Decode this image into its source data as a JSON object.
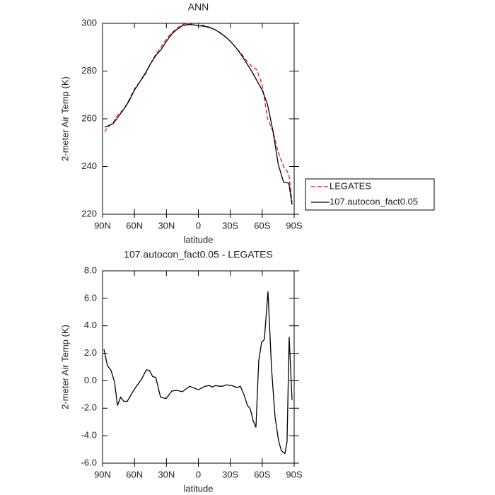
{
  "chart_data": [
    {
      "type": "line",
      "title": "ANN",
      "xlabel": "latitude",
      "ylabel": "2-meter Air Temp (K)",
      "x": [
        88,
        85,
        80,
        75,
        70,
        65,
        60,
        55,
        50,
        45,
        40,
        35,
        30,
        25,
        20,
        15,
        10,
        5,
        0,
        -5,
        -10,
        -15,
        -20,
        -25,
        -30,
        -35,
        -40,
        -45,
        -50,
        -55,
        -60,
        -65,
        -70,
        -75,
        -80,
        -85,
        -88
      ],
      "series": [
        {
          "name": "LEGATES",
          "color": "#e0191b",
          "linestyle": "dashed",
          "values": [
            254.5,
            256.5,
            258.5,
            262,
            264,
            268,
            272.5,
            275.5,
            278.5,
            283,
            287,
            290,
            293.5,
            296,
            298,
            299.5,
            300,
            299.5,
            299,
            299.2,
            298.5,
            297.5,
            296,
            294.5,
            292.5,
            290,
            287.5,
            284.5,
            282,
            280.5,
            274,
            260,
            255,
            246,
            240,
            237,
            225
          ]
        },
        {
          "name": "107.autocon_fact0.05",
          "color": "#000000",
          "linestyle": "solid",
          "values": [
            256.5,
            257,
            258,
            261,
            264,
            267.5,
            272,
            275.5,
            279,
            283,
            286.5,
            289,
            292.5,
            295.5,
            297.5,
            299,
            299.5,
            299.4,
            299,
            298.8,
            298.3,
            297.5,
            296.2,
            294.5,
            292.5,
            290,
            287,
            283.5,
            280,
            276,
            272,
            266,
            255,
            241,
            233.5,
            233,
            224
          ]
        }
      ],
      "xlim": [
        90,
        -90
      ],
      "xticks": [
        {
          "value": 90,
          "label": "90N"
        },
        {
          "value": 60,
          "label": "60N"
        },
        {
          "value": 30,
          "label": "30N"
        },
        0,
        {
          "value": -30,
          "label": "30S"
        },
        {
          "value": -60,
          "label": "60S"
        },
        {
          "value": -90,
          "label": "90S"
        }
      ],
      "ylim": [
        220,
        300
      ],
      "yticks": [
        220,
        240,
        260,
        280,
        300
      ],
      "legend": "outside-right"
    },
    {
      "type": "line",
      "title": "107.autocon_fact0.05 - LEGATES",
      "xlabel": "latitude",
      "ylabel": "2-meter Air Temp (K)",
      "x": [
        88.7,
        85.4,
        82,
        78.7,
        76,
        73,
        70,
        66.8,
        60,
        53.5,
        48.8,
        46,
        42.9,
        40,
        35.5,
        30.2,
        25,
        20.3,
        15,
        8.3,
        0,
        -6.3,
        -10.3,
        -13,
        -16.2,
        -19.6,
        -22.9,
        -26.2,
        -31.5,
        -36.2,
        -39.5,
        -42.8,
        -46.1,
        -48.8,
        -51.4,
        -54.1,
        -56.7,
        -59.4,
        -62,
        -65.4,
        -68.7,
        -72,
        -75.3,
        -78,
        -81.3,
        -83.3,
        -85.3,
        -88
      ],
      "series": [
        {
          "color": "#000000",
          "linestyle": "solid",
          "values": [
            2.3,
            1.1,
            0.75,
            -0.1,
            -1.8,
            -1.2,
            -1.5,
            -1.5,
            -0.6,
            0.1,
            0.8,
            0.75,
            0.3,
            0.25,
            -1.2,
            -1.3,
            -0.75,
            -0.7,
            -0.8,
            -0.4,
            -0.65,
            -0.4,
            -0.35,
            -0.45,
            -0.35,
            -0.4,
            -0.4,
            -0.3,
            -0.35,
            -0.5,
            -0.4,
            -1.0,
            -1.8,
            -2.05,
            -2.9,
            -3.4,
            1.45,
            2.8,
            3.0,
            6.5,
            0.95,
            -2.6,
            -4.35,
            -5.1,
            -5.3,
            -4.45,
            3.2,
            -1.4
          ]
        }
      ],
      "xlim": [
        90,
        -90
      ],
      "xticks": [
        {
          "value": 90,
          "label": "90N"
        },
        {
          "value": 60,
          "label": "60N"
        },
        {
          "value": 30,
          "label": "30N"
        },
        0,
        {
          "value": -30,
          "label": "30S"
        },
        {
          "value": -60,
          "label": "60S"
        },
        {
          "value": -90,
          "label": "90S"
        }
      ],
      "ylim": [
        -6,
        8
      ],
      "yticks": [
        {
          "value": -6,
          "label": "-6.0"
        },
        {
          "value": -4,
          "label": "-4.0"
        },
        {
          "value": -2,
          "label": "-2.0"
        },
        {
          "value": 0,
          "label": "0.0"
        },
        {
          "value": 2,
          "label": "2.0"
        },
        {
          "value": 4,
          "label": "4.0"
        },
        {
          "value": 6,
          "label": "6.0"
        },
        {
          "value": 8,
          "label": "8.0"
        }
      ]
    }
  ]
}
